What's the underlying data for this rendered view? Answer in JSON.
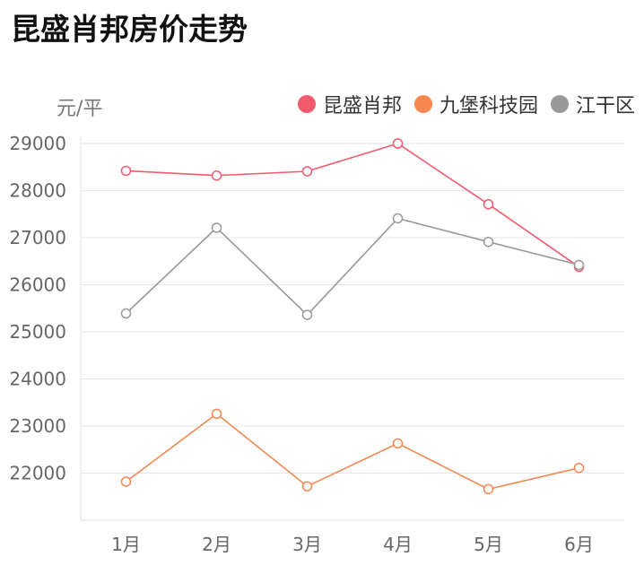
{
  "page": {
    "title": "昆盛肖邦房价走势"
  },
  "chart_data": {
    "type": "line",
    "title": "昆盛肖邦房价走势",
    "ylabel": "元/平",
    "xlabel": "",
    "categories": [
      "1月",
      "2月",
      "3月",
      "4月",
      "5月",
      "6月"
    ],
    "ylim": [
      21000,
      29000
    ],
    "yticks": [
      "22000",
      "23000",
      "24000",
      "25000",
      "26000",
      "27000",
      "28000",
      "29000"
    ],
    "grid": true,
    "legend_position": "top-right",
    "series": [
      {
        "name": "昆盛肖邦",
        "color": "#f05a6e",
        "values": [
          28420,
          28320,
          28410,
          29000,
          27710,
          26380
        ]
      },
      {
        "name": "九堡科技园",
        "color": "#f5874f",
        "values": [
          21820,
          23260,
          21720,
          22630,
          21660,
          22110
        ]
      },
      {
        "name": "江干区",
        "color": "#999999",
        "values": [
          25390,
          27210,
          25360,
          27410,
          26910,
          26420
        ]
      }
    ]
  }
}
